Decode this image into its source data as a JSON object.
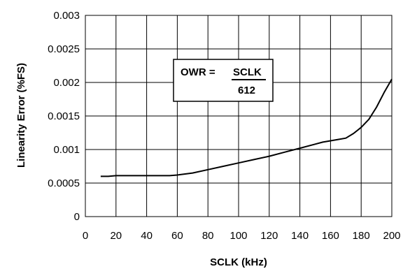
{
  "chart_data": {
    "type": "line",
    "title": "",
    "xlabel": "SCLK (kHz)",
    "ylabel": "Linearity Error (%FS)",
    "xlim": [
      0,
      200
    ],
    "ylim": [
      0,
      0.003
    ],
    "x_ticks": [
      "0",
      "20",
      "40",
      "60",
      "80",
      "100",
      "120",
      "140",
      "160",
      "180",
      "200"
    ],
    "y_ticks": [
      "0",
      "0.0005",
      "0.001",
      "0.0015",
      "0.002",
      "0.0025",
      "0.003"
    ],
    "grid": true,
    "series": [
      {
        "x": [
          10,
          15,
          20,
          30,
          40,
          50,
          55,
          60,
          70,
          80,
          90,
          100,
          110,
          120,
          130,
          140,
          150,
          155,
          160,
          165,
          170,
          175,
          180,
          185,
          190,
          195,
          200
        ],
        "y": [
          0.0006,
          0.0006,
          0.00061,
          0.00061,
          0.00061,
          0.00061,
          0.00061,
          0.00062,
          0.00065,
          0.0007,
          0.00075,
          0.0008,
          0.00085,
          0.0009,
          0.00096,
          0.00102,
          0.00108,
          0.00111,
          0.00113,
          0.00115,
          0.00117,
          0.00124,
          0.00133,
          0.00145,
          0.00163,
          0.00185,
          0.00205
        ]
      }
    ],
    "annotation": {
      "lhs": "OWR =",
      "numerator": "SCLK",
      "denominator": "612"
    }
  }
}
